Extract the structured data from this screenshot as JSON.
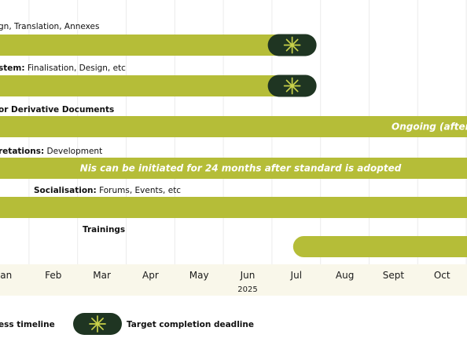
{
  "colors": {
    "bar": "#b5bd38",
    "milestone": "#1f3522",
    "star": "#c9d14a",
    "grid": "#ebebeb",
    "axis_band": "#f9f7ea",
    "bar_text": "#ffffff"
  },
  "icons": {
    "milestone": "asterisk-star-icon"
  },
  "chart_data": {
    "type": "gantt",
    "title": "",
    "year": "2025",
    "months": [
      "Jan",
      "Feb",
      "Mar",
      "Apr",
      "May",
      "Jun",
      "Jul",
      "Aug",
      "Sept",
      "Oct"
    ],
    "tasks": [
      {
        "label_bold": "",
        "label_rest": "gn, Translation, Annexes",
        "bar_start": null,
        "bar_end": 5.9,
        "bar_text": "",
        "milestone_at": 5.9
      },
      {
        "label_bold": "stem:",
        "label_rest": " Finalisation, Design, etc",
        "bar_start": null,
        "bar_end": 5.9,
        "bar_text": "",
        "milestone_at": 5.9
      },
      {
        "label_bold": "or Derivative Documents",
        "label_rest": "",
        "bar_start": null,
        "bar_end": null,
        "bar_text": "Ongoing (after N",
        "milestone_at": null
      },
      {
        "label_bold": "retations:",
        "label_rest": " Development",
        "bar_start": null,
        "bar_end": null,
        "bar_text": "Nis can be initiated for 24 months after standard is adopted",
        "milestone_at": null
      },
      {
        "label_bold": "Socialisation:",
        "label_rest": " Forums, Events, etc",
        "bar_start": null,
        "bar_end": null,
        "bar_text": "",
        "milestone_at": null
      },
      {
        "label_bold": "Trainings",
        "label_rest": "",
        "bar_start": 6.0,
        "bar_end": null,
        "bar_text": "",
        "milestone_at": null
      }
    ],
    "legend": [
      {
        "name": "ess timeline",
        "kind": "bar"
      },
      {
        "name": "Target completion deadline",
        "kind": "milestone"
      }
    ]
  }
}
